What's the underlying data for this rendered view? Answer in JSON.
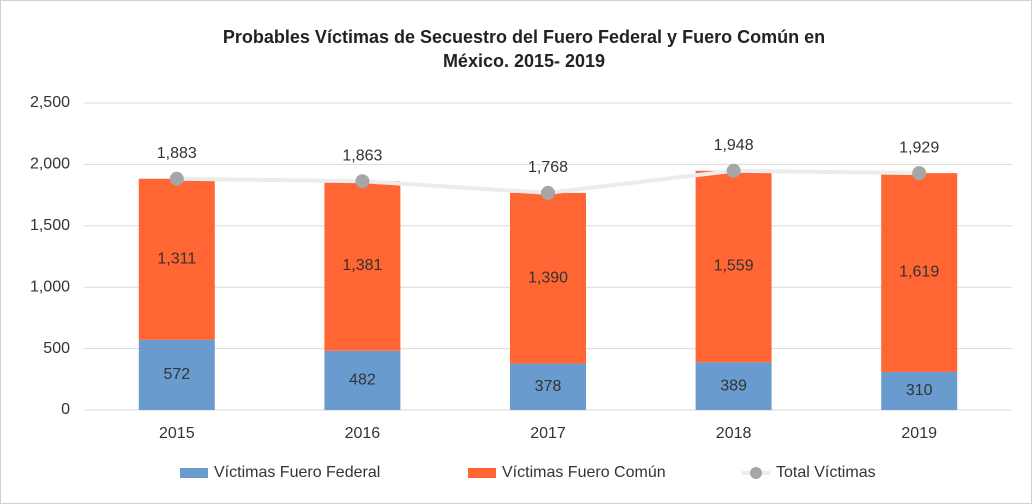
{
  "chart_data": {
    "type": "stacked-bar-line",
    "title": [
      "Probables Víctimas de Secuestro del Fuero Federal y Fuero Común en",
      "México. 2015- 2019"
    ],
    "categories": [
      "2015",
      "2016",
      "2017",
      "2018",
      "2019"
    ],
    "series": [
      {
        "name": "Víctimas Fuero Federal",
        "color": "#6a9bcf",
        "kind": "bar",
        "values": [
          572,
          482,
          378,
          389,
          310
        ],
        "value_labels": [
          "572",
          "482",
          "378",
          "389",
          "310"
        ]
      },
      {
        "name": "Víctimas Fuero Común",
        "color": "#ff6633",
        "kind": "bar",
        "values": [
          1311,
          1381,
          1390,
          1559,
          1619
        ],
        "value_labels": [
          "1,311",
          "1,381",
          "1,390",
          "1,559",
          "1,619"
        ]
      },
      {
        "name": "Total Víctimas",
        "color": "#a6a6a6",
        "kind": "line",
        "values": [
          1883,
          1863,
          1768,
          1948,
          1929
        ],
        "value_labels": [
          "1,883",
          "1,863",
          "1,768",
          "1,948",
          "1,929"
        ]
      }
    ],
    "ylim": [
      0,
      2500
    ],
    "yticks": [
      0,
      500,
      {
        "value": 1000,
        "label": "1,000"
      },
      {
        "value": 1500,
        "label": "1,500"
      },
      {
        "value": 2000,
        "label": "2,000"
      },
      {
        "value": 2500,
        "label": "2,500"
      }
    ],
    "grid": true,
    "legend": "bottom"
  }
}
